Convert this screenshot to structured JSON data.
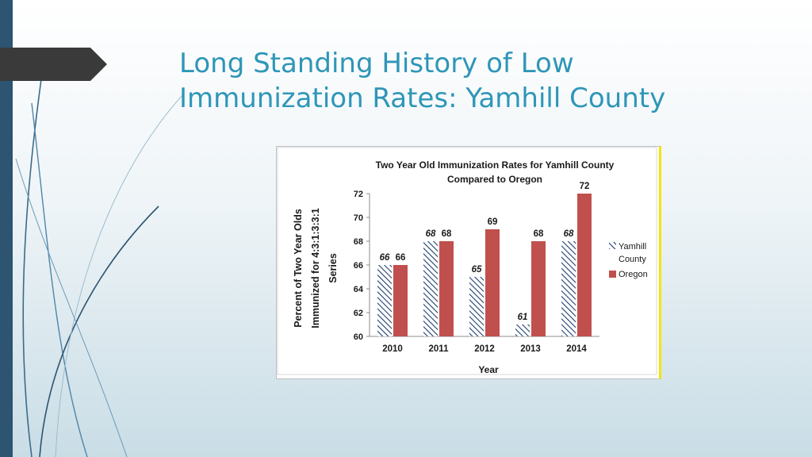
{
  "slide": {
    "title_line1": "Long Standing History of Low",
    "title_line2": "Immunization Rates: Yamhill County"
  },
  "colors": {
    "title": "#2e96b8",
    "left_bar": "#2d5470",
    "arrow": "#3a3a3a",
    "oregon_bar": "#c0504d",
    "yamhill_hatch": "#1f3f6e"
  },
  "chart_data": {
    "type": "bar",
    "title_line1": "Two Year Old Immunization Rates for Yamhill County",
    "title_line2": "Compared to Oregon",
    "xlabel": "Year",
    "ylabel_lines": [
      "Percent of Two Year Olds",
      "Immunized for 4:3:1:3:3:1",
      "Series"
    ],
    "categories": [
      "2010",
      "2011",
      "2012",
      "2013",
      "2014"
    ],
    "ylim": [
      60,
      72
    ],
    "yticks": [
      60,
      62,
      64,
      66,
      68,
      70,
      72
    ],
    "legend_position": "right",
    "series": [
      {
        "name": "Yamhill County",
        "values": [
          66,
          68,
          65,
          61,
          68
        ],
        "style": "hatched"
      },
      {
        "name": "Oregon",
        "values": [
          66,
          68,
          69,
          68,
          72
        ],
        "style": "solid"
      }
    ],
    "legend_labels": [
      "Yamhill",
      "County",
      "Oregon"
    ]
  }
}
